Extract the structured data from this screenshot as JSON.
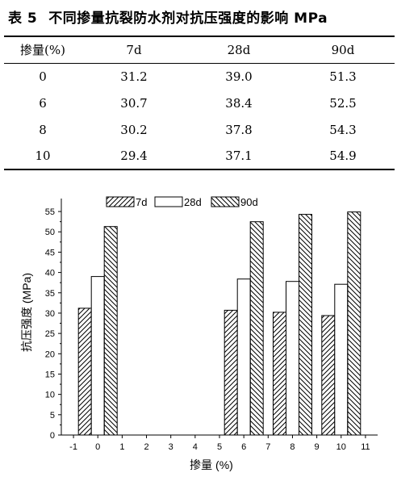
{
  "title": {
    "prefix": "表 5",
    "text": "不同掺量抗裂防水剂对抗压强度的影响 MPa"
  },
  "table": {
    "headers": [
      "掺量(%)",
      "7d",
      "28d",
      "90d"
    ],
    "rows": [
      [
        "0",
        "31.2",
        "39.0",
        "51.3"
      ],
      [
        "6",
        "30.7",
        "38.4",
        "52.5"
      ],
      [
        "8",
        "30.2",
        "37.8",
        "54.3"
      ],
      [
        "10",
        "29.4",
        "37.1",
        "54.9"
      ]
    ]
  },
  "chart_data": {
    "type": "bar",
    "categories": [
      0,
      6,
      8,
      10
    ],
    "series": [
      {
        "name": "7d",
        "values": [
          31.2,
          30.7,
          30.2,
          29.4
        ],
        "fill": "forward-hatch"
      },
      {
        "name": "28d",
        "values": [
          39.0,
          38.4,
          37.8,
          37.1
        ],
        "fill": "white"
      },
      {
        "name": "90d",
        "values": [
          51.3,
          52.5,
          54.3,
          54.9
        ],
        "fill": "back-hatch"
      }
    ],
    "xlabel": "掺量 (%)",
    "ylabel": "抗压强度 (MPa)",
    "xlim": [
      -1.5,
      11.5
    ],
    "ylim": [
      0,
      57
    ],
    "xticks": [
      "-1",
      "0",
      "1",
      "2",
      "3",
      "4",
      "5",
      "6",
      "7",
      "8",
      "9",
      "10",
      "11"
    ],
    "yticks": [
      "0",
      "5",
      "10",
      "15",
      "20",
      "25",
      "30",
      "35",
      "40",
      "45",
      "50",
      "55"
    ],
    "legend_position": "top",
    "grid": false
  }
}
